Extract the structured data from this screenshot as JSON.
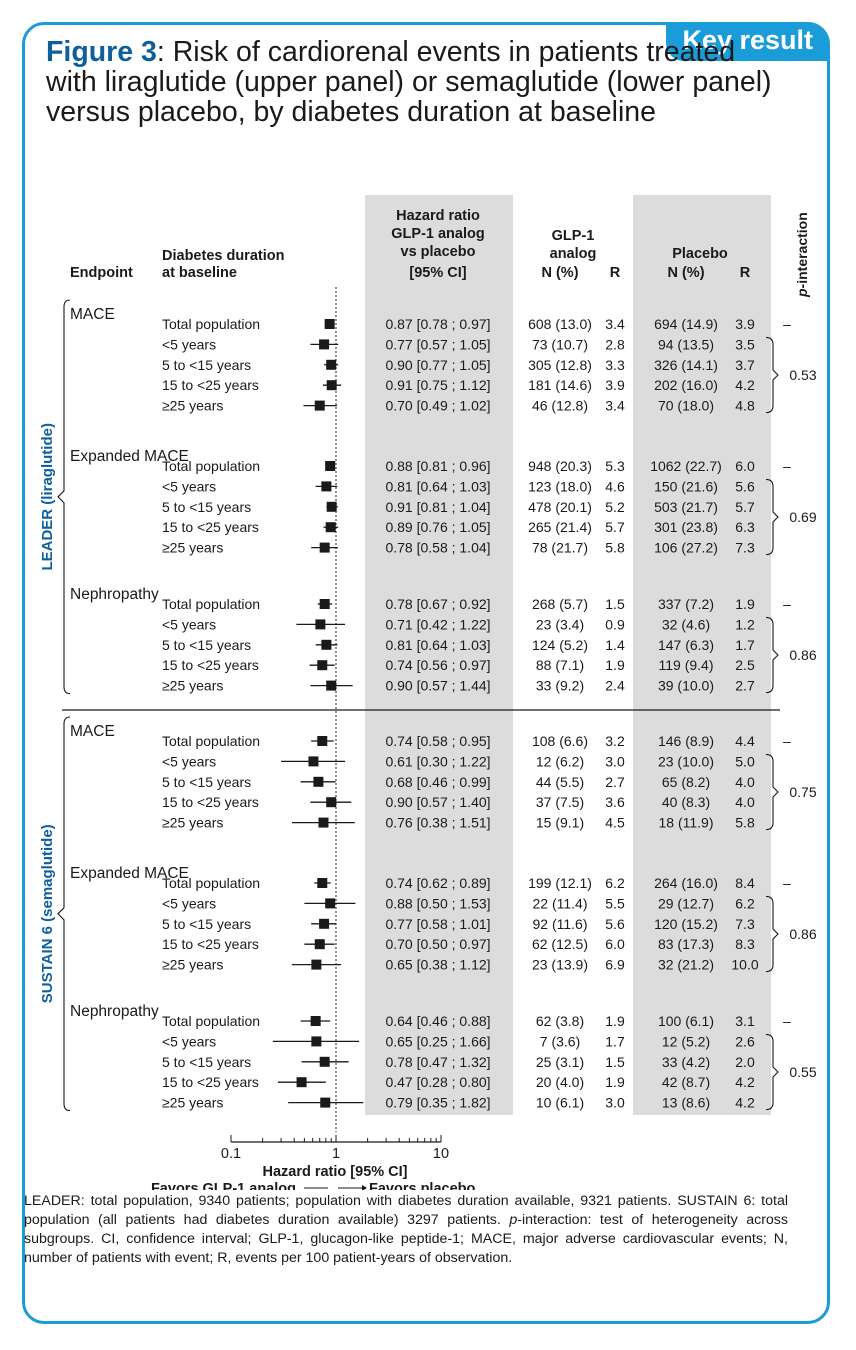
{
  "badge": "Key result",
  "title": {
    "lead": "Figure 3",
    "rest": ": Risk of cardiorenal events in patients treated with liraglutide (upper panel) or semaglutide (lower panel) versus placebo, by diabetes duration at baseline"
  },
  "headers": {
    "endpoint": "Endpoint",
    "duration_l1": "Diabetes duration",
    "duration_l2": "at baseline",
    "hr_l1": "Hazard ratio",
    "hr_l2": "GLP-1 analog",
    "hr_l3": "vs placebo",
    "hr_l4": "[95% CI]",
    "glp_l1": "GLP-1",
    "glp_l2": "analog",
    "glp_n": "N (%)",
    "glp_r": "R",
    "pla_l1": "Placebo",
    "pla_n": "N (%)",
    "pla_r": "R",
    "pint_italic": "p",
    "pint_rest": "-interaction"
  },
  "colors": {
    "accent": "#1a9cd8",
    "title_blue": "#0e5f9c",
    "shade": "#dcdcdc"
  },
  "chart_data": {
    "type": "forest",
    "x_scale": "log",
    "xlim": [
      0.1,
      10
    ],
    "ticks": [
      "0.1",
      "1",
      "10"
    ],
    "tick_values": [
      0.1,
      1,
      10
    ],
    "xlabel": "Hazard ratio [95% CI]",
    "favors_left": "Favors GLP-1 analog",
    "favors_right": "Favors placebo",
    "trials": [
      {
        "name": "LEADER (liraglutide)",
        "endpoints": [
          {
            "name": "MACE",
            "p_total": "–",
            "p_interaction": "0.53",
            "rows": [
              {
                "label": "Total population",
                "hr": 0.87,
                "lo": 0.78,
                "hi": 0.97,
                "hr_text": "0.87 [0.78 ; 0.97]",
                "glp_n": "608 (13.0)",
                "glp_r": "3.4",
                "pla_n": "694 (14.9)",
                "pla_r": "3.9"
              },
              {
                "label": "<5 years",
                "hr": 0.77,
                "lo": 0.57,
                "hi": 1.05,
                "hr_text": "0.77 [0.57 ; 1.05]",
                "glp_n": "73 (10.7)",
                "glp_r": "2.8",
                "pla_n": "94 (13.5)",
                "pla_r": "3.5"
              },
              {
                "label": "5 to <15 years",
                "hr": 0.9,
                "lo": 0.77,
                "hi": 1.05,
                "hr_text": "0.90 [0.77 ; 1.05]",
                "glp_n": "305 (12.8)",
                "glp_r": "3.3",
                "pla_n": "326 (14.1)",
                "pla_r": "3.7"
              },
              {
                "label": "15 to <25 years",
                "hr": 0.91,
                "lo": 0.75,
                "hi": 1.12,
                "hr_text": "0.91 [0.75 ; 1.12]",
                "glp_n": "181 (14.6)",
                "glp_r": "3.9",
                "pla_n": "202 (16.0)",
                "pla_r": "4.2"
              },
              {
                "label": "≥25 years",
                "hr": 0.7,
                "lo": 0.49,
                "hi": 1.02,
                "hr_text": "0.70 [0.49 ; 1.02]",
                "glp_n": "46 (12.8)",
                "glp_r": "3.4",
                "pla_n": "70 (18.0)",
                "pla_r": "4.8"
              }
            ]
          },
          {
            "name": "Expanded MACE",
            "p_total": "–",
            "p_interaction": "0.69",
            "rows": [
              {
                "label": "Total population",
                "hr": 0.88,
                "lo": 0.81,
                "hi": 0.96,
                "hr_text": "0.88 [0.81 ; 0.96]",
                "glp_n": "948 (20.3)",
                "glp_r": "5.3",
                "pla_n": "1062 (22.7)",
                "pla_r": "6.0"
              },
              {
                "label": "<5 years",
                "hr": 0.81,
                "lo": 0.64,
                "hi": 1.03,
                "hr_text": "0.81 [0.64 ; 1.03]",
                "glp_n": "123 (18.0)",
                "glp_r": "4.6",
                "pla_n": "150 (21.6)",
                "pla_r": "5.6"
              },
              {
                "label": "5 to <15 years",
                "hr": 0.91,
                "lo": 0.81,
                "hi": 1.04,
                "hr_text": "0.91 [0.81 ; 1.04]",
                "glp_n": "478 (20.1)",
                "glp_r": "5.2",
                "pla_n": "503 (21.7)",
                "pla_r": "5.7"
              },
              {
                "label": "15 to <25 years",
                "hr": 0.89,
                "lo": 0.76,
                "hi": 1.05,
                "hr_text": "0.89 [0.76 ; 1.05]",
                "glp_n": "265 (21.4)",
                "glp_r": "5.7",
                "pla_n": "301 (23.8)",
                "pla_r": "6.3"
              },
              {
                "label": "≥25 years",
                "hr": 0.78,
                "lo": 0.58,
                "hi": 1.04,
                "hr_text": "0.78 [0.58 ; 1.04]",
                "glp_n": "78 (21.7)",
                "glp_r": "5.8",
                "pla_n": "106 (27.2)",
                "pla_r": "7.3"
              }
            ]
          },
          {
            "name": "Nephropathy",
            "p_total": "–",
            "p_interaction": "0.86",
            "rows": [
              {
                "label": "Total population",
                "hr": 0.78,
                "lo": 0.67,
                "hi": 0.92,
                "hr_text": "0.78 [0.67 ; 0.92]",
                "glp_n": "268 (5.7)",
                "glp_r": "1.5",
                "pla_n": "337 (7.2)",
                "pla_r": "1.9"
              },
              {
                "label": "<5 years",
                "hr": 0.71,
                "lo": 0.42,
                "hi": 1.22,
                "hr_text": "0.71 [0.42 ; 1.22]",
                "glp_n": "23 (3.4)",
                "glp_r": "0.9",
                "pla_n": "32 (4.6)",
                "pla_r": "1.2"
              },
              {
                "label": "5 to <15 years",
                "hr": 0.81,
                "lo": 0.64,
                "hi": 1.03,
                "hr_text": "0.81 [0.64 ; 1.03]",
                "glp_n": "124 (5.2)",
                "glp_r": "1.4",
                "pla_n": "147 (6.3)",
                "pla_r": "1.7"
              },
              {
                "label": "15 to <25 years",
                "hr": 0.74,
                "lo": 0.56,
                "hi": 0.97,
                "hr_text": "0.74 [0.56 ; 0.97]",
                "glp_n": "88 (7.1)",
                "glp_r": "1.9",
                "pla_n": "119 (9.4)",
                "pla_r": "2.5"
              },
              {
                "label": "≥25 years",
                "hr": 0.9,
                "lo": 0.57,
                "hi": 1.44,
                "hr_text": "0.90 [0.57 ; 1.44]",
                "glp_n": "33 (9.2)",
                "glp_r": "2.4",
                "pla_n": "39 (10.0)",
                "pla_r": "2.7"
              }
            ]
          }
        ]
      },
      {
        "name": "SUSTAIN 6 (semaglutide)",
        "endpoints": [
          {
            "name": "MACE",
            "p_total": "–",
            "p_interaction": "0.75",
            "rows": [
              {
                "label": "Total population",
                "hr": 0.74,
                "lo": 0.58,
                "hi": 0.95,
                "hr_text": "0.74 [0.58 ; 0.95]",
                "glp_n": "108 (6.6)",
                "glp_r": "3.2",
                "pla_n": "146 (8.9)",
                "pla_r": "4.4"
              },
              {
                "label": "<5 years",
                "hr": 0.61,
                "lo": 0.3,
                "hi": 1.22,
                "hr_text": "0.61 [0.30 ; 1.22]",
                "glp_n": "12 (6.2)",
                "glp_r": "3.0",
                "pla_n": "23 (10.0)",
                "pla_r": "5.0"
              },
              {
                "label": "5 to <15 years",
                "hr": 0.68,
                "lo": 0.46,
                "hi": 0.99,
                "hr_text": "0.68 [0.46 ; 0.99]",
                "glp_n": "44 (5.5)",
                "glp_r": "2.7",
                "pla_n": "65 (8.2)",
                "pla_r": "4.0"
              },
              {
                "label": "15 to <25 years",
                "hr": 0.9,
                "lo": 0.57,
                "hi": 1.4,
                "hr_text": "0.90 [0.57 ; 1.40]",
                "glp_n": "37 (7.5)",
                "glp_r": "3.6",
                "pla_n": "40 (8.3)",
                "pla_r": "4.0"
              },
              {
                "label": "≥25 years",
                "hr": 0.76,
                "lo": 0.38,
                "hi": 1.51,
                "hr_text": "0.76 [0.38 ; 1.51]",
                "glp_n": "15 (9.1)",
                "glp_r": "4.5",
                "pla_n": "18 (11.9)",
                "pla_r": "5.8"
              }
            ]
          },
          {
            "name": "Expanded MACE",
            "p_total": "–",
            "p_interaction": "0.86",
            "rows": [
              {
                "label": "Total population",
                "hr": 0.74,
                "lo": 0.62,
                "hi": 0.89,
                "hr_text": "0.74 [0.62 ; 0.89]",
                "glp_n": "199 (12.1)",
                "glp_r": "6.2",
                "pla_n": "264 (16.0)",
                "pla_r": "8.4"
              },
              {
                "label": "<5 years",
                "hr": 0.88,
                "lo": 0.5,
                "hi": 1.53,
                "hr_text": "0.88 [0.50 ; 1.53]",
                "glp_n": "22 (11.4)",
                "glp_r": "5.5",
                "pla_n": "29 (12.7)",
                "pla_r": "6.2"
              },
              {
                "label": "5 to <15 years",
                "hr": 0.77,
                "lo": 0.58,
                "hi": 1.01,
                "hr_text": "0.77 [0.58 ; 1.01]",
                "glp_n": "92 (11.6)",
                "glp_r": "5.6",
                "pla_n": "120 (15.2)",
                "pla_r": "7.3"
              },
              {
                "label": "15 to <25 years",
                "hr": 0.7,
                "lo": 0.5,
                "hi": 0.97,
                "hr_text": "0.70 [0.50 ; 0.97]",
                "glp_n": "62 (12.5)",
                "glp_r": "6.0",
                "pla_n": "83 (17.3)",
                "pla_r": "8.3"
              },
              {
                "label": "≥25 years",
                "hr": 0.65,
                "lo": 0.38,
                "hi": 1.12,
                "hr_text": "0.65 [0.38 ; 1.12]",
                "glp_n": "23 (13.9)",
                "glp_r": "6.9",
                "pla_n": "32 (21.2)",
                "pla_r": "10.0"
              }
            ]
          },
          {
            "name": "Nephropathy",
            "p_total": "–",
            "p_interaction": "0.55",
            "rows": [
              {
                "label": "Total population",
                "hr": 0.64,
                "lo": 0.46,
                "hi": 0.88,
                "hr_text": "0.64 [0.46 ; 0.88]",
                "glp_n": "62 (3.8)",
                "glp_r": "1.9",
                "pla_n": "100 (6.1)",
                "pla_r": "3.1"
              },
              {
                "label": "<5 years",
                "hr": 0.65,
                "lo": 0.25,
                "hi": 1.66,
                "hr_text": "0.65 [0.25 ; 1.66]",
                "glp_n": "7 (3.6)",
                "glp_r": "1.7",
                "pla_n": "12 (5.2)",
                "pla_r": "2.6"
              },
              {
                "label": "5 to <15 years",
                "hr": 0.78,
                "lo": 0.47,
                "hi": 1.32,
                "hr_text": "0.78 [0.47 ; 1.32]",
                "glp_n": "25 (3.1)",
                "glp_r": "1.5",
                "pla_n": "33 (4.2)",
                "pla_r": "2.0"
              },
              {
                "label": "15 to <25 years",
                "hr": 0.47,
                "lo": 0.28,
                "hi": 0.8,
                "hr_text": "0.47 [0.28 ; 0.80]",
                "glp_n": "20 (4.0)",
                "glp_r": "1.9",
                "pla_n": "42 (8.7)",
                "pla_r": "4.2"
              },
              {
                "label": "≥25 years",
                "hr": 0.79,
                "lo": 0.35,
                "hi": 1.82,
                "hr_text": "0.79 [0.35 ; 1.82]",
                "glp_n": "10 (6.1)",
                "glp_r": "3.0",
                "pla_n": "13 (8.6)",
                "pla_r": "4.2"
              }
            ]
          }
        ]
      }
    ]
  },
  "footnote": {
    "part1": "LEADER: total population, 9340 patients; population with diabetes duration available, 9321 patients. SUSTAIN 6: total population (all patients had diabetes duration available) 3297 patients. ",
    "p_italic": "p",
    "part2": "-interaction: test of heterogeneity across subgroups. CI, confidence interval; GLP-1, glucagon-like peptide-1; MACE, major adverse cardiovascular events; N, number of patients with event; R, events per 100 patient-years of observation."
  }
}
